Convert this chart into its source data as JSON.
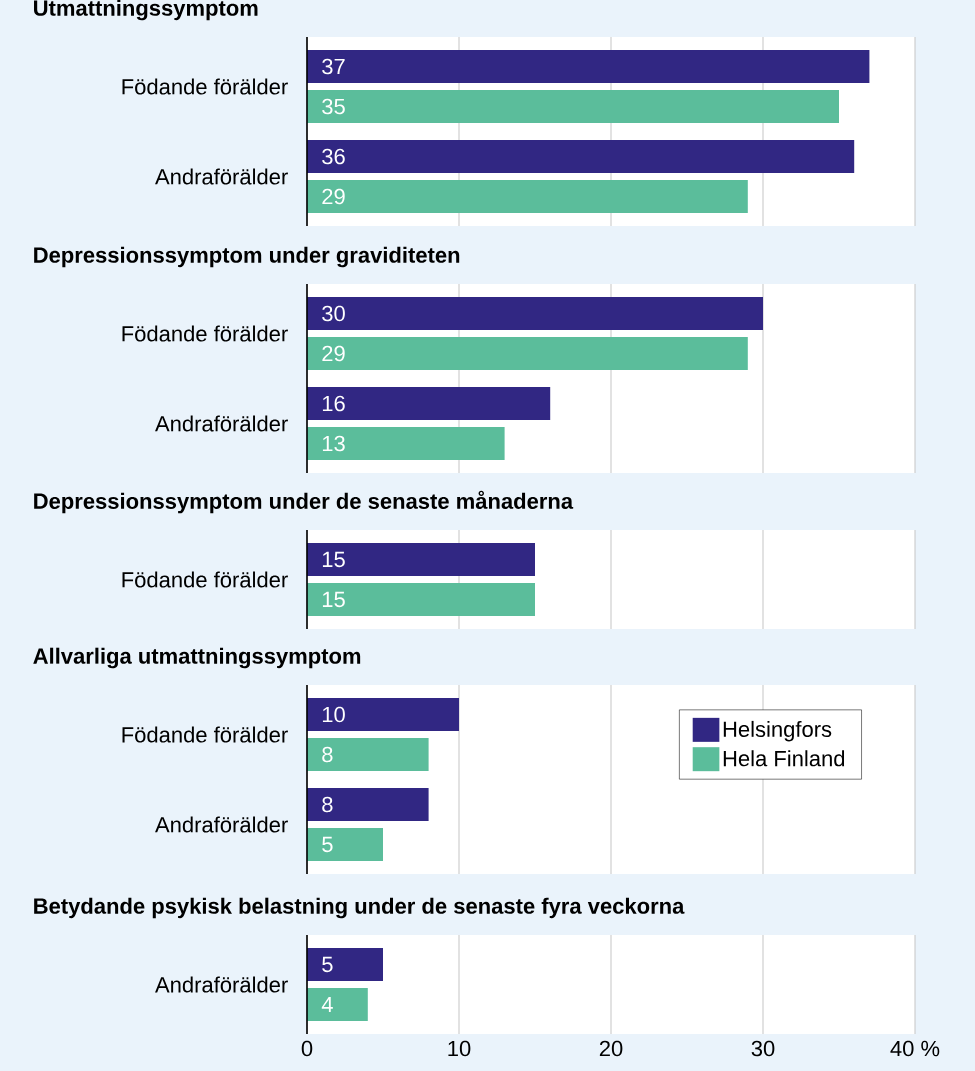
{
  "chart_data": [
    {
      "type": "bar",
      "orientation": "horizontal",
      "title": "Utmattningssymptom",
      "categories": [
        "Födande förälder",
        "Andraförälder"
      ],
      "series": [
        {
          "color": "#312783",
          "values": [
            37,
            36
          ]
        },
        {
          "color": "#5bbd9b",
          "values": [
            35,
            29
          ]
        }
      ],
      "xlim": [
        0,
        40
      ],
      "tick_labels": "y",
      "grid": "x",
      "data_labels": true
    },
    {
      "type": "bar",
      "orientation": "horizontal",
      "title": "Depressionssymptom under graviditeten",
      "categories": [
        "Födande förälder",
        "Andraförälder"
      ],
      "series": [
        {
          "color": "#312783",
          "values": [
            30,
            16
          ]
        },
        {
          "color": "#5bbd9b",
          "values": [
            29,
            13
          ]
        }
      ],
      "xlim": [
        0,
        40
      ],
      "tick_labels": "y",
      "grid": "x",
      "data_labels": true
    },
    {
      "type": "bar",
      "orientation": "horizontal",
      "title": "Depressionssymptom under de senaste månaderna",
      "categories": [
        "Födande förälder"
      ],
      "series": [
        {
          "color": "#312783",
          "values": [
            15
          ]
        },
        {
          "color": "#5bbd9b",
          "values": [
            15
          ]
        }
      ],
      "xlim": [
        0,
        40
      ],
      "tick_labels": "y",
      "grid": "x",
      "data_labels": true
    },
    {
      "type": "bar",
      "orientation": "horizontal",
      "title": "Allvarliga utmattningssymptom",
      "categories": [
        "Födande förälder",
        "Andraförälder"
      ],
      "series": [
        {
          "name": "Helsingfors",
          "color": "#312783",
          "values": [
            10,
            8
          ]
        },
        {
          "name": "Hela Finland",
          "color": "#5bbd9b",
          "values": [
            8,
            5
          ]
        }
      ],
      "xlim": [
        0,
        40
      ],
      "tick_labels": "y",
      "grid": "x",
      "data_labels": true,
      "legend": "right"
    },
    {
      "type": "bar",
      "orientation": "horizontal",
      "title": "Betydande psykisk belastning under de senaste fyra veckorna",
      "categories": [
        "Andraförälder"
      ],
      "series": [
        {
          "color": "#312783",
          "values": [
            5
          ]
        },
        {
          "color": "#5bbd9b",
          "values": [
            4
          ]
        }
      ],
      "xlim": [
        0,
        40
      ],
      "xticks": [
        0,
        10,
        20,
        30,
        {
          "value": 40,
          "label": "40 %"
        }
      ],
      "grid": "x",
      "data_labels": true
    }
  ]
}
